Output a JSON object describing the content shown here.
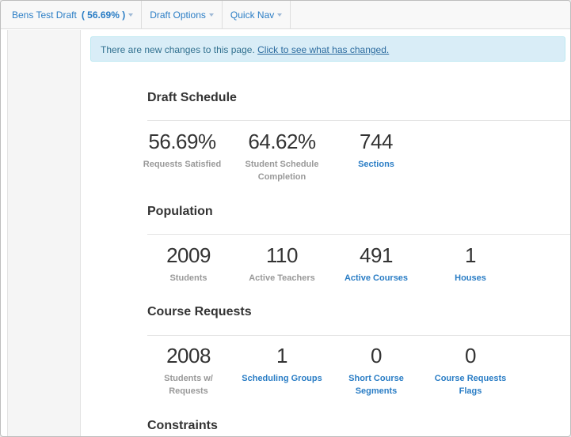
{
  "topnav": {
    "draft_name": "Bens Test Draft",
    "draft_pct": "( 56.69% )",
    "draft_options": "Draft Options",
    "quick_nav": "Quick Nav"
  },
  "alert": {
    "text": "There are new changes to this page.",
    "link": "Click to see what has changed."
  },
  "sections": {
    "draft_schedule": {
      "title": "Draft Schedule",
      "stats": [
        {
          "value": "56.69%",
          "label": "Requests Satisfied"
        },
        {
          "value": "64.62%",
          "label": "Student Schedule Completion"
        },
        {
          "value": "744",
          "label": "Sections"
        }
      ]
    },
    "population": {
      "title": "Population",
      "stats": [
        {
          "value": "2009",
          "label": "Students"
        },
        {
          "value": "110",
          "label": "Active Teachers"
        },
        {
          "value": "491",
          "label": "Active Courses"
        },
        {
          "value": "1",
          "label": "Houses"
        }
      ]
    },
    "course_requests": {
      "title": "Course Requests",
      "stats": [
        {
          "value": "2008",
          "label": "Students w/ Requests"
        },
        {
          "value": "1",
          "label": "Scheduling Groups"
        },
        {
          "value": "0",
          "label": "Short Course Segments"
        },
        {
          "value": "0",
          "label": "Course Requests Flags"
        }
      ]
    },
    "constraints": {
      "title": "Constraints"
    }
  },
  "colors": {
    "link": "#2a7dc5",
    "alert_bg": "#d9edf7",
    "muted_label": "#999999"
  }
}
